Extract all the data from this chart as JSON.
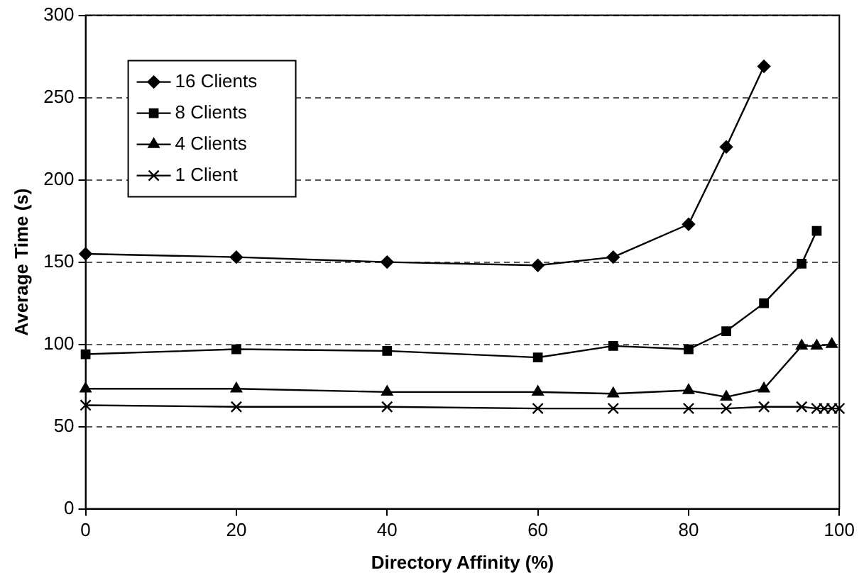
{
  "chart_data": {
    "type": "line",
    "xlabel": "Directory Affinity (%)",
    "ylabel": "Average Time (s)",
    "xlim": [
      0,
      100
    ],
    "xticks": [
      0,
      20,
      40,
      60,
      80,
      100
    ],
    "ylim": [
      0,
      300
    ],
    "yticks": [
      0,
      50,
      100,
      150,
      200,
      250,
      300
    ],
    "grid": "y",
    "legend": "top left",
    "line_style": "solid",
    "series": [
      {
        "name": "16 Clients",
        "color": "#000000",
        "marker": "diamond",
        "x": [
          0,
          20,
          40,
          60,
          70,
          80,
          85,
          90
        ],
        "values": [
          155,
          153,
          150,
          148,
          153,
          173,
          220,
          269
        ]
      },
      {
        "name": "8 Clients",
        "color": "#000000",
        "marker": "square",
        "x": [
          0,
          20,
          40,
          60,
          70,
          80,
          85,
          90,
          95,
          97
        ],
        "values": [
          94,
          97,
          96,
          92,
          99,
          97,
          108,
          125,
          149,
          169
        ]
      },
      {
        "name": "4 Clients",
        "color": "#000000",
        "marker": "triangle",
        "x": [
          0,
          20,
          40,
          60,
          70,
          80,
          85,
          90,
          95,
          97,
          99
        ],
        "values": [
          73,
          73,
          71,
          71,
          70,
          72,
          68,
          73,
          99,
          99,
          100
        ]
      },
      {
        "name": "1 Client",
        "color": "#000000",
        "marker": "cross",
        "x": [
          0,
          20,
          40,
          60,
          70,
          80,
          85,
          90,
          95,
          97,
          98,
          99,
          100
        ],
        "values": [
          63,
          62,
          62,
          61,
          61,
          61,
          61,
          62,
          62,
          61,
          61,
          61,
          61
        ]
      }
    ]
  }
}
